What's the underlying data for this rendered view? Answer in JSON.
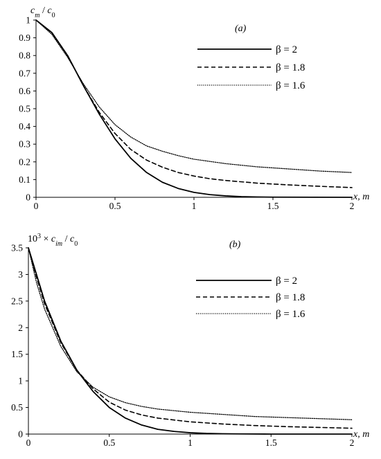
{
  "chart_data": [
    {
      "type": "line",
      "panel_label": "(a)",
      "ylabel": {
        "c": "c",
        "sub_m": "m",
        "slash": " / ",
        "c0": "c",
        "sub_0": "0"
      },
      "xlabel": "x, m",
      "xlim": [
        0,
        2
      ],
      "ylim": [
        0,
        1
      ],
      "xticks": [
        "0",
        "0.5",
        "1",
        "1.5",
        "2"
      ],
      "yticks": [
        "0",
        "0.1",
        "0.2",
        "0.3",
        "0.4",
        "0.5",
        "0.6",
        "0.7",
        "0.8",
        "0.9",
        "1"
      ],
      "series": [
        {
          "name": "β = 2",
          "style": "solid",
          "x": [
            0,
            0.1,
            0.2,
            0.3,
            0.4,
            0.5,
            0.6,
            0.7,
            0.8,
            0.9,
            1.0,
            1.1,
            1.2,
            1.3,
            1.4,
            1.5,
            2.0
          ],
          "y": [
            1,
            0.93,
            0.8,
            0.63,
            0.47,
            0.33,
            0.22,
            0.14,
            0.085,
            0.05,
            0.028,
            0.015,
            0.008,
            0.004,
            0.002,
            0.001,
            0.0
          ]
        },
        {
          "name": "β = 1.8",
          "style": "dashed",
          "x": [
            0,
            0.1,
            0.2,
            0.3,
            0.4,
            0.5,
            0.6,
            0.7,
            0.8,
            0.9,
            1.0,
            1.1,
            1.2,
            1.4,
            1.6,
            1.8,
            2.0
          ],
          "y": [
            1,
            0.93,
            0.8,
            0.63,
            0.48,
            0.36,
            0.27,
            0.21,
            0.17,
            0.14,
            0.12,
            0.105,
            0.095,
            0.08,
            0.07,
            0.062,
            0.055
          ]
        },
        {
          "name": "β = 1.6",
          "style": "dotted",
          "x": [
            0,
            0.1,
            0.2,
            0.3,
            0.4,
            0.5,
            0.6,
            0.7,
            0.8,
            0.9,
            1.0,
            1.2,
            1.4,
            1.6,
            1.8,
            2.0
          ],
          "y": [
            1,
            0.92,
            0.79,
            0.64,
            0.51,
            0.41,
            0.34,
            0.29,
            0.26,
            0.235,
            0.215,
            0.19,
            0.172,
            0.16,
            0.148,
            0.14
          ]
        }
      ]
    },
    {
      "type": "line",
      "panel_label": "(b)",
      "ylabel": {
        "ten": "10",
        "exp": "3",
        "times": " × ",
        "c": "c",
        "sub_im": "im",
        "slash": " / ",
        "c0": "c",
        "sub_0": "0"
      },
      "xlabel": "x, m",
      "xlim": [
        0,
        2
      ],
      "ylim": [
        0,
        3.5
      ],
      "xticks": [
        "0",
        "0.5",
        "1",
        "1.5",
        "2"
      ],
      "yticks": [
        "0",
        "0.5",
        "1",
        "1.5",
        "2",
        "2.5",
        "3",
        "3.5"
      ],
      "series": [
        {
          "name": "β = 2",
          "style": "solid",
          "x": [
            0,
            0.05,
            0.1,
            0.2,
            0.3,
            0.4,
            0.5,
            0.6,
            0.7,
            0.8,
            0.9,
            1.0,
            1.1,
            1.2,
            1.3,
            1.5,
            2.0
          ],
          "y": [
            3.5,
            3.0,
            2.5,
            1.75,
            1.2,
            0.8,
            0.5,
            0.3,
            0.17,
            0.09,
            0.05,
            0.025,
            0.012,
            0.006,
            0.003,
            0.0,
            0.0
          ]
        },
        {
          "name": "β = 1.8",
          "style": "dashed",
          "x": [
            0,
            0.05,
            0.1,
            0.2,
            0.3,
            0.4,
            0.5,
            0.6,
            0.7,
            0.8,
            1.0,
            1.2,
            1.4,
            1.6,
            1.8,
            2.0
          ],
          "y": [
            3.5,
            2.95,
            2.45,
            1.72,
            1.2,
            0.85,
            0.6,
            0.45,
            0.36,
            0.3,
            0.23,
            0.19,
            0.16,
            0.14,
            0.125,
            0.11
          ]
        },
        {
          "name": "β = 1.6",
          "style": "dotted",
          "x": [
            0,
            0.05,
            0.1,
            0.2,
            0.3,
            0.4,
            0.5,
            0.6,
            0.7,
            0.8,
            1.0,
            1.2,
            1.4,
            1.6,
            1.8,
            2.0
          ],
          "y": [
            3.5,
            2.85,
            2.35,
            1.65,
            1.17,
            0.88,
            0.7,
            0.59,
            0.52,
            0.47,
            0.41,
            0.37,
            0.33,
            0.31,
            0.29,
            0.27
          ]
        }
      ]
    }
  ]
}
